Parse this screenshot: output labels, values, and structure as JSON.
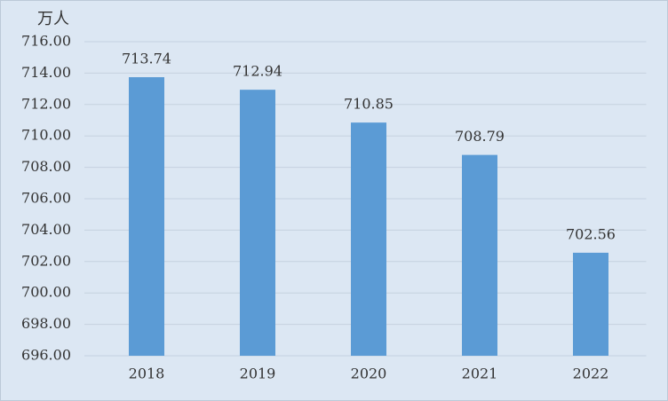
{
  "chart_data": {
    "type": "bar",
    "y_unit": "万人",
    "categories": [
      "2018",
      "2019",
      "2020",
      "2021",
      "2022"
    ],
    "values": [
      713.74,
      712.94,
      710.85,
      708.79,
      702.56
    ],
    "color": "#5b9bd5",
    "ylim": [
      696,
      716
    ],
    "yticks": [
      {
        "value": 696,
        "label": "696.00"
      },
      {
        "value": 698,
        "label": "698.00"
      },
      {
        "value": 700,
        "label": "700.00"
      },
      {
        "value": 702,
        "label": "702.00"
      },
      {
        "value": 704,
        "label": "704.00"
      },
      {
        "value": 706,
        "label": "706.00"
      },
      {
        "value": 708,
        "label": "708.00"
      },
      {
        "value": 710,
        "label": "710.00"
      },
      {
        "value": 712,
        "label": "712.00"
      },
      {
        "value": 714,
        "label": "714.00"
      },
      {
        "value": 716,
        "label": "716.00"
      }
    ],
    "grid": true
  }
}
